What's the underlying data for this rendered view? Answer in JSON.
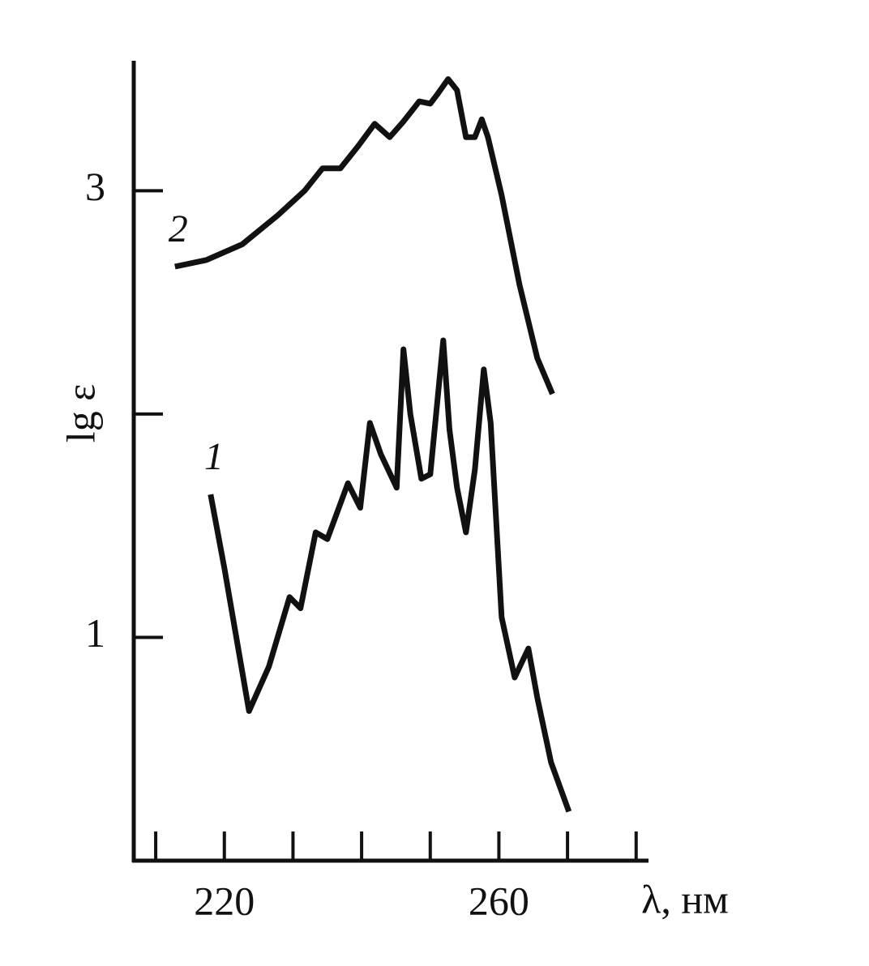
{
  "chart_data": {
    "type": "line",
    "x_label": "λ, нм",
    "y_label": "lg ε",
    "xlim": [
      206.8,
      281.8
    ],
    "xticks": [
      220,
      260
    ],
    "x_minor_ticks": [
      210,
      230,
      240,
      250,
      270,
      280
    ],
    "ylim": [
      0,
      3.6
    ],
    "yticks": [
      1,
      3
    ],
    "y_minor_ticks": [
      2
    ],
    "series": [
      {
        "name": "1",
        "color": "#111111",
        "x": [
          218.0,
          220.0,
          223.6,
          226.5,
          229.5,
          231.1,
          233.3,
          235.0,
          238.0,
          239.8,
          241.2,
          242.8,
          245.1,
          246.1,
          247.1,
          248.7,
          250.0,
          251.9,
          252.8,
          253.9,
          255.2,
          256.5,
          257.8,
          258.8,
          260.4,
          262.3,
          264.3,
          265.6,
          267.6,
          270.2
        ],
        "values": [
          1.64,
          1.31,
          0.67,
          0.87,
          1.18,
          1.13,
          1.47,
          1.44,
          1.69,
          1.58,
          1.96,
          1.82,
          1.67,
          2.29,
          2.0,
          1.71,
          1.73,
          2.33,
          1.93,
          1.67,
          1.47,
          1.75,
          2.2,
          1.96,
          1.09,
          0.82,
          0.95,
          0.73,
          0.44,
          0.22
        ]
      },
      {
        "name": "2",
        "color": "#111111",
        "x": [
          212.8,
          217.4,
          222.6,
          227.8,
          231.7,
          234.3,
          236.9,
          239.5,
          241.9,
          244.1,
          246.1,
          248.4,
          250.0,
          251.0,
          252.6,
          253.9,
          255.2,
          256.5,
          257.5,
          258.4,
          260.4,
          263.0,
          265.6,
          267.8
        ],
        "values": [
          2.66,
          2.69,
          2.76,
          2.89,
          3.0,
          3.1,
          3.1,
          3.2,
          3.3,
          3.24,
          3.31,
          3.4,
          3.39,
          3.43,
          3.5,
          3.45,
          3.24,
          3.24,
          3.32,
          3.24,
          2.98,
          2.58,
          2.25,
          2.09
        ]
      }
    ]
  }
}
